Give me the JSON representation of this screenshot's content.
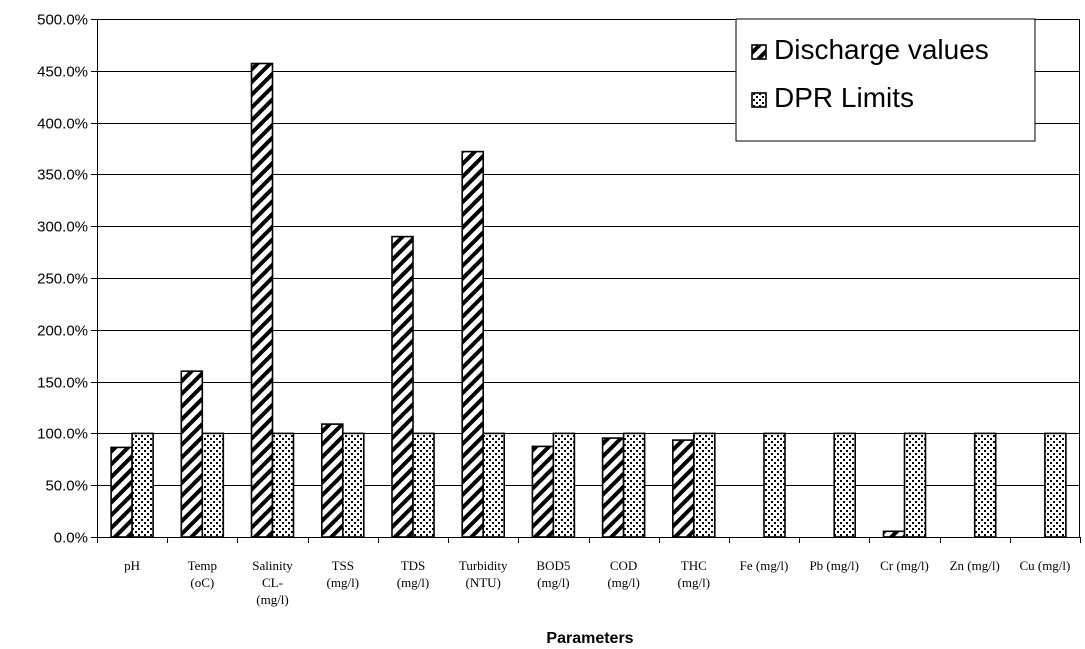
{
  "chart_data": {
    "type": "bar",
    "categories": [
      "pH",
      "Temp (oC)",
      "Salinity CL- (mg/l)",
      "TSS (mg/l)",
      "TDS (mg/l)",
      "Turbidity (NTU)",
      "BOD5 (mg/l)",
      "COD (mg/l)",
      "THC (mg/l)",
      "Fe (mg/l)",
      "Pb (mg/l)",
      "Cr (mg/l)",
      "Zn (mg/l)",
      "Cu (mg/l)"
    ],
    "category_lines": [
      [
        "pH"
      ],
      [
        "Temp",
        "(oC)"
      ],
      [
        "Salinity",
        "CL-",
        "(mg/l)"
      ],
      [
        "TSS",
        "(mg/l)"
      ],
      [
        "TDS",
        "(mg/l)"
      ],
      [
        "Turbidity",
        "(NTU)"
      ],
      [
        "BOD5",
        "(mg/l)"
      ],
      [
        "COD",
        "(mg/l)"
      ],
      [
        "THC",
        "(mg/l)"
      ],
      [
        "Fe (mg/l)"
      ],
      [
        "Pb (mg/l)"
      ],
      [
        "Cr (mg/l)"
      ],
      [
        "Zn (mg/l)"
      ],
      [
        "Cu (mg/l)"
      ]
    ],
    "series": [
      {
        "name": "Discharge values",
        "pattern": "diagonal-stripes",
        "values": [
          86.5,
          160,
          457,
          109,
          290,
          372,
          87.5,
          95.5,
          93.5,
          0,
          0,
          5.5,
          0,
          0
        ]
      },
      {
        "name": "DPR Limits",
        "pattern": "dots",
        "values": [
          100,
          100,
          100,
          100,
          100,
          100,
          100,
          100,
          100,
          100,
          100,
          100,
          100,
          100
        ]
      }
    ],
    "xlabel": "Parameters",
    "ylabel": "",
    "ylim": [
      0,
      500
    ],
    "ytick_step": 50,
    "ytick_labels": [
      "0.0%",
      "50.0%",
      "100.0%",
      "150.0%",
      "200.0%",
      "250.0%",
      "300.0%",
      "350.0%",
      "400.0%",
      "450.0%",
      "500.0%"
    ],
    "grid": true,
    "legend_position": "top-right"
  }
}
